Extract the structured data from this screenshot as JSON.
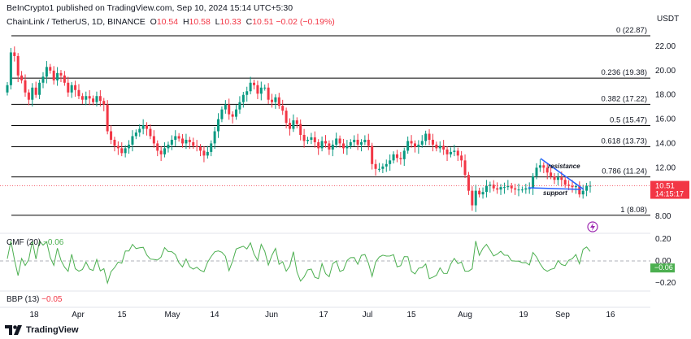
{
  "header": {
    "published": "BeInCrypto1 published on TradingView.com, Sep 10, 2024 15:14 UTC+5:30",
    "symbol": "ChainLink / TetherUS, 1D, BINANCE",
    "ohlc": {
      "o_label": "O",
      "o": "10.54",
      "h_label": "H",
      "h": "10.58",
      "l_label": "L",
      "l": "10.33",
      "c_label": "C",
      "c": "10.51",
      "chg": "−0.02 (−0.19%)"
    }
  },
  "axis": {
    "currency": "USDT",
    "price_ticks": [
      "22.00",
      "20.00",
      "18.00",
      "16.00",
      "14.00",
      "12.00",
      "10.00",
      "8.00"
    ],
    "cmf_ticks": [
      "0.20",
      "0.00",
      "−0.20"
    ],
    "x_ticks": [
      "18",
      "Apr",
      "15",
      "May",
      "14",
      "Jun",
      "17",
      "Jul",
      "15",
      "Aug",
      "19",
      "Sep",
      "16"
    ]
  },
  "last_price": {
    "value": "10.51",
    "countdown": "14:15:17"
  },
  "cmf": {
    "label": "CMF (20)",
    "value": "−0.06",
    "axis_value": "−0.06"
  },
  "bbp": {
    "label": "BBP (13)",
    "value": "−0.05"
  },
  "brand": {
    "name": "TradingView"
  },
  "colors": {
    "up": "#089981",
    "down": "#f23645",
    "fib": "#000000",
    "trend": "#2962ff",
    "cmf": "#4caf50",
    "bg": "#ffffff"
  },
  "icons": [
    "tradingview-logo-icon",
    "lightning-icon"
  ],
  "chart_data": {
    "type": "candlestick",
    "title": "ChainLink / TetherUS, 1D, BINANCE",
    "ylim": [
      7.6,
      23.5
    ],
    "fib_levels": [
      {
        "ratio": "0",
        "price": 22.87,
        "label": "0 (22.87)"
      },
      {
        "ratio": "0.236",
        "price": 19.38,
        "label": "0.236 (19.38)"
      },
      {
        "ratio": "0.382",
        "price": 17.22,
        "label": "0.382 (17.22)"
      },
      {
        "ratio": "0.5",
        "price": 15.47,
        "label": "0.5 (15.47)"
      },
      {
        "ratio": "0.618",
        "price": 13.73,
        "label": "0.618 (13.73)"
      },
      {
        "ratio": "0.786",
        "price": 11.24,
        "label": "0.786 (11.24)"
      },
      {
        "ratio": "1",
        "price": 8.08,
        "label": "1 (8.08)"
      }
    ],
    "annotations": [
      {
        "text": "resistance"
      },
      {
        "text": "support"
      }
    ],
    "closes": [
      18.8,
      21.5,
      21.2,
      19.6,
      19.2,
      18.2,
      17.6,
      18.6,
      18.0,
      19.0,
      19.5,
      20.3,
      20.0,
      19.2,
      19.8,
      19.6,
      19.0,
      18.2,
      18.8,
      18.4,
      17.9,
      17.6,
      17.9,
      17.7,
      17.4,
      17.9,
      17.5,
      17.2,
      15.0,
      14.3,
      13.8,
      13.6,
      13.2,
      13.6,
      13.9,
      14.6,
      14.9,
      15.2,
      15.5,
      15.2,
      14.6,
      14.0,
      13.4,
      13.1,
      13.6,
      13.9,
      14.3,
      14.6,
      14.4,
      14.0,
      14.3,
      14.1,
      13.8,
      13.7,
      13.4,
      13.0,
      13.3,
      14.0,
      15.0,
      16.0,
      16.8,
      17.2,
      16.4,
      16.2,
      16.8,
      17.4,
      18.0,
      18.3,
      19.0,
      18.8,
      18.1,
      18.6,
      18.6,
      17.6,
      17.4,
      17.8,
      17.1,
      16.7,
      15.7,
      15.2,
      15.9,
      15.6,
      14.7,
      14.2,
      14.3,
      14.5,
      14.1,
      13.6,
      14.2,
      14.0,
      13.5,
      13.9,
      14.4,
      14.0,
      13.6,
      13.8,
      14.1,
      14.3,
      13.9,
      14.1,
      14.3,
      13.8,
      12.3,
      11.9,
      11.9,
      12.1,
      12.3,
      12.6,
      13.1,
      12.8,
      12.7,
      13.4,
      14.2,
      14.0,
      13.7,
      13.9,
      14.2,
      14.8,
      14.3,
      13.9,
      13.6,
      13.8,
      13.5,
      13.1,
      13.3,
      13.4,
      13.0,
      12.6,
      11.4,
      10.1,
      8.9,
      10.1,
      9.8,
      10.0,
      10.5,
      10.6,
      10.3,
      10.2,
      10.4,
      10.4,
      10.5,
      10.3,
      10.2,
      10.2,
      10.2,
      10.3,
      10.3,
      11.3,
      12.0,
      12.2,
      12.0,
      11.6,
      11.3,
      11.0,
      11.2,
      11.0,
      10.6,
      10.5,
      10.4,
      10.5,
      9.8,
      10.1,
      10.5,
      10.51
    ]
  }
}
